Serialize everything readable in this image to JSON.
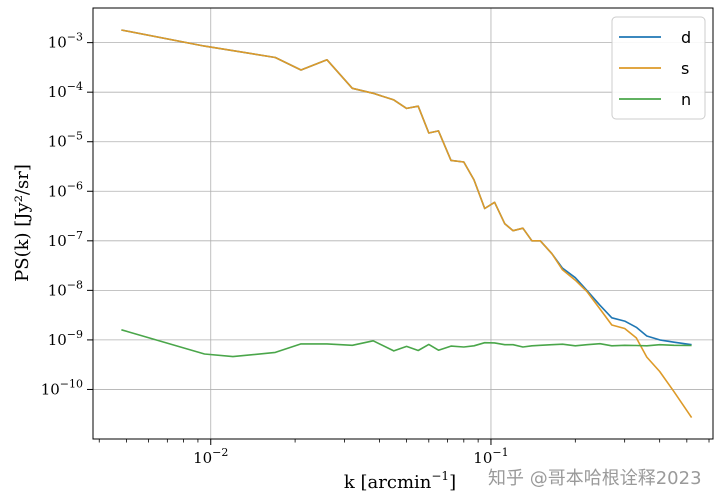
{
  "chart_data": {
    "type": "line",
    "title": "",
    "xlabel_base": "k [arcmin",
    "xlabel_exp": "−1",
    "xlabel_tail": "]",
    "ylabel": "PS(k) [Jy²/sr]",
    "xscale": "log",
    "yscale": "log",
    "xlim": [
      0.0038,
      0.62
    ],
    "ylim": [
      1e-11,
      0.005
    ],
    "grid": true,
    "legend_position": "top-right",
    "x_ticks": [
      {
        "value": 0.01,
        "base": "10",
        "exp": "−2"
      },
      {
        "value": 0.1,
        "base": "10",
        "exp": "−1"
      }
    ],
    "y_ticks": [
      {
        "value": 0.001,
        "base": "10",
        "exp": "−3"
      },
      {
        "value": 0.0001,
        "base": "10",
        "exp": "−4"
      },
      {
        "value": 1e-05,
        "base": "10",
        "exp": "−5"
      },
      {
        "value": 1e-06,
        "base": "10",
        "exp": "−6"
      },
      {
        "value": 1e-07,
        "base": "10",
        "exp": "−7"
      },
      {
        "value": 1e-08,
        "base": "10",
        "exp": "−8"
      },
      {
        "value": 1e-09,
        "base": "10",
        "exp": "−9"
      },
      {
        "value": 1e-10,
        "base": "10",
        "exp": "−10"
      }
    ],
    "series": [
      {
        "name": "d",
        "color": "#1f77b4",
        "x": [
          0.0048,
          0.0095,
          0.017,
          0.021,
          0.026,
          0.032,
          0.038,
          0.045,
          0.05,
          0.055,
          0.06,
          0.065,
          0.072,
          0.08,
          0.087,
          0.095,
          0.103,
          0.112,
          0.12,
          0.13,
          0.14,
          0.15,
          0.165,
          0.18,
          0.2,
          0.22,
          0.245,
          0.27,
          0.3,
          0.33,
          0.36,
          0.4,
          0.45,
          0.52
        ],
        "y": [
          0.0018,
          0.00085,
          0.0005,
          0.00028,
          0.00045,
          0.00012,
          9.5e-05,
          7e-05,
          4.7e-05,
          5.2e-05,
          1.5e-05,
          1.65e-05,
          4.2e-06,
          3.9e-06,
          1.7e-06,
          4.5e-07,
          6e-07,
          2.2e-07,
          1.6e-07,
          1.8e-07,
          1e-07,
          1e-07,
          5.5e-08,
          2.8e-08,
          1.8e-08,
          1e-08,
          5e-09,
          2.8e-09,
          2.4e-09,
          1.8e-09,
          1.2e-09,
          1e-09,
          9e-10,
          8e-10
        ]
      },
      {
        "name": "s",
        "color": "#dd9a28",
        "x": [
          0.0048,
          0.0095,
          0.017,
          0.021,
          0.026,
          0.032,
          0.038,
          0.045,
          0.05,
          0.055,
          0.06,
          0.065,
          0.072,
          0.08,
          0.087,
          0.095,
          0.103,
          0.112,
          0.12,
          0.13,
          0.14,
          0.15,
          0.165,
          0.18,
          0.2,
          0.22,
          0.245,
          0.27,
          0.3,
          0.33,
          0.36,
          0.4,
          0.45,
          0.52
        ],
        "y": [
          0.0018,
          0.00085,
          0.0005,
          0.00028,
          0.00045,
          0.00012,
          9.5e-05,
          7e-05,
          4.7e-05,
          5.2e-05,
          1.5e-05,
          1.65e-05,
          4.2e-06,
          3.9e-06,
          1.7e-06,
          4.5e-07,
          6e-07,
          2.2e-07,
          1.6e-07,
          1.8e-07,
          1e-07,
          1e-07,
          5.5e-08,
          2.6e-08,
          1.6e-08,
          9.5e-09,
          4.2e-09,
          2e-09,
          1.7e-09,
          1.1e-09,
          4.5e-10,
          2.3e-10,
          9e-11,
          2.7e-11
        ]
      },
      {
        "name": "n",
        "color": "#4aa64a",
        "x": [
          0.0048,
          0.0095,
          0.012,
          0.017,
          0.021,
          0.026,
          0.032,
          0.038,
          0.045,
          0.05,
          0.055,
          0.06,
          0.065,
          0.072,
          0.08,
          0.087,
          0.095,
          0.103,
          0.112,
          0.12,
          0.13,
          0.14,
          0.15,
          0.165,
          0.18,
          0.2,
          0.22,
          0.245,
          0.27,
          0.3,
          0.33,
          0.36,
          0.4,
          0.45,
          0.52
        ],
        "y": [
          1.6e-09,
          5.2e-10,
          4.6e-10,
          5.6e-10,
          8.3e-10,
          8.3e-10,
          7.8e-10,
          9.6e-10,
          6e-10,
          7.4e-10,
          6.1e-10,
          8.1e-10,
          6.2e-10,
          7.5e-10,
          7.2e-10,
          7.6e-10,
          8.8e-10,
          8.7e-10,
          8e-10,
          8e-10,
          7.2e-10,
          7.6e-10,
          7.8e-10,
          8e-10,
          8.2e-10,
          7.6e-10,
          8e-10,
          8.4e-10,
          7.6e-10,
          7.8e-10,
          7.7e-10,
          7.6e-10,
          8e-10,
          7.8e-10,
          7.7e-10
        ]
      }
    ],
    "watermark": "知乎 @哥本哈根诠释2023"
  }
}
